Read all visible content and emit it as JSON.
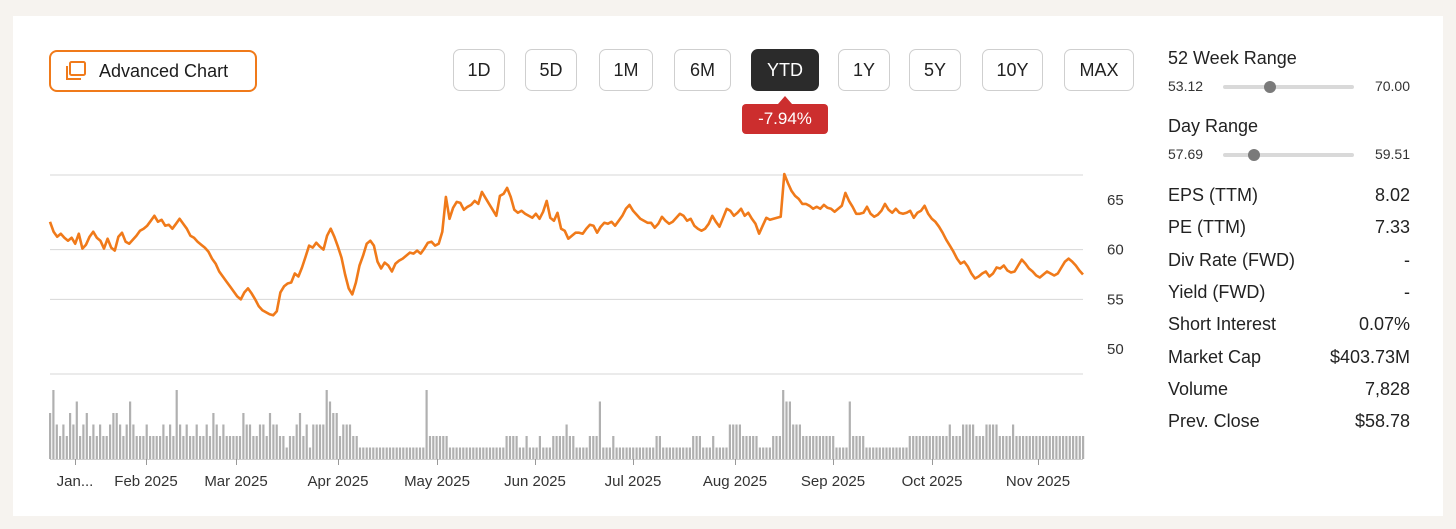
{
  "advanced_chart": {
    "label": "Advanced Chart",
    "icon": "chart-window-icon"
  },
  "time_ranges": [
    "1D",
    "5D",
    "1M",
    "6M",
    "YTD",
    "1Y",
    "5Y",
    "10Y",
    "MAX"
  ],
  "selected_range": "YTD",
  "change_badge": "-7.94%",
  "colors": {
    "accent": "#f07a1a",
    "negative": "#cc2e2e",
    "volume": "#b0b0b0",
    "active_button": "#2b2b2b"
  },
  "chart_data": {
    "type": "line",
    "y_ticks": [
      "65",
      "60",
      "55",
      "50"
    ],
    "ylim": [
      47.5,
      67.5
    ],
    "x_tick_labels": [
      "Jan...",
      "Feb 2025",
      "Mar 2025",
      "Apr 2025",
      "May 2025",
      "Jun 2025",
      "Jul 2025",
      "Aug 2025",
      "Sep 2025",
      "Oct 2025",
      "Nov 2025"
    ],
    "series": [
      {
        "values": [
          62.8,
          61.8,
          61.3,
          61.6,
          61.2,
          60.9,
          61.2,
          60.6,
          61.6,
          60.1,
          60.5,
          61.3,
          61.8,
          61.2,
          60.9,
          60.1,
          61.1,
          60.2,
          59.9,
          61.3,
          61.7,
          60.8,
          60.6,
          61.0,
          61.4,
          61.9,
          62.1,
          62.4,
          62.9,
          63.4,
          62.8,
          63.0,
          62.4,
          62.5,
          62.1,
          62.6,
          63.1,
          62.6,
          62.1,
          61.4,
          61.2,
          60.8,
          60.5,
          60.2,
          59.8,
          59.1,
          58.6,
          57.8,
          57.3,
          56.8,
          56.3,
          55.8,
          55.3,
          55.0,
          55.7,
          56.1,
          55.6,
          55.0,
          54.3,
          53.9,
          53.7,
          53.5,
          53.4,
          53.8,
          55.7,
          56.3,
          56.6,
          56.7,
          57.6,
          57.3,
          58.2,
          59.3,
          60.4,
          60.2,
          60.7,
          60.3,
          60.0,
          61.4,
          62.1,
          61.3,
          60.3,
          59.2,
          57.5,
          56.1,
          55.5,
          56.7,
          58.4,
          59.4,
          60.6,
          60.9,
          60.4,
          58.8,
          58.1,
          58.7,
          58.4,
          57.8,
          58.6,
          58.9,
          59.1,
          59.4,
          59.7,
          59.6,
          59.9,
          59.6,
          60.1,
          60.7,
          60.8,
          60.4,
          60.6,
          61.8,
          65.3,
          63.1,
          64.2,
          64.8,
          64.7,
          64.0,
          64.3,
          64.5,
          64.9,
          64.6,
          65.8,
          65.2,
          64.6,
          64.0,
          63.4,
          65.4,
          65.6,
          66.2,
          65.3,
          64.0,
          63.7,
          63.9,
          63.6,
          63.4,
          63.2,
          63.6,
          63.1,
          63.8,
          64.9,
          63.2,
          62.9,
          63.7,
          62.1,
          61.9,
          61.1,
          61.4,
          61.7,
          61.7,
          61.6,
          62.1,
          62.5,
          62.4,
          61.7,
          62.3,
          62.7,
          62.6,
          62.8,
          62.4,
          62.9,
          63.4,
          64.1,
          64.5,
          63.9,
          63.5,
          63.1,
          62.9,
          62.7,
          62.7,
          62.2,
          62.6,
          63.3,
          62.9,
          62.6,
          62.8,
          63.2,
          63.6,
          63.4,
          62.9,
          63.1,
          62.4,
          62.1,
          61.9,
          62.1,
          62.6,
          63.4,
          62.8,
          62.3,
          63.2,
          64.1,
          63.9,
          63.4,
          63.7,
          64.1,
          63.4,
          63.7,
          63.1,
          62.6,
          61.6,
          62.4,
          63.2,
          63.0,
          63.1,
          63.2,
          63.3,
          67.6,
          66.7,
          65.9,
          65.4,
          65.1,
          64.6,
          64.6,
          64.4,
          64.1,
          64.3,
          64.1,
          64.5,
          64.2,
          64.1,
          63.8,
          64.1,
          64.4,
          65.7,
          64.9,
          64.3,
          63.6,
          63.6,
          63.7,
          64.3,
          63.6,
          63.3,
          63.5,
          63.9,
          64.6,
          64.0,
          63.7,
          64.1,
          63.7,
          63.6,
          63.7,
          63.9,
          63.2,
          63.7,
          63.9,
          64.4,
          63.6,
          63.1,
          62.8,
          62.3,
          61.7,
          61.0,
          60.4,
          59.8,
          59.1,
          58.6,
          58.8,
          58.3,
          57.6,
          57.1,
          57.3,
          57.6,
          57.8,
          57.3,
          57.6,
          58.2,
          58.1,
          58.4,
          57.9,
          57.7,
          57.8,
          58.4,
          59.0,
          58.6,
          58.1,
          57.8,
          57.4,
          57.2,
          57.5,
          57.8,
          57.6,
          57.4,
          57.6,
          58.2,
          58.8,
          59.1,
          58.8,
          58.4,
          57.9,
          57.5
        ]
      }
    ],
    "volume": [
      4,
      6,
      3,
      2,
      3,
      2,
      4,
      3,
      5,
      2,
      3,
      4,
      2,
      3,
      2,
      3,
      2,
      2,
      3,
      4,
      4,
      3,
      2,
      3,
      5,
      3,
      2,
      2,
      2,
      3,
      2,
      2,
      2,
      2,
      3,
      2,
      3,
      2,
      6,
      3,
      2,
      3,
      2,
      2,
      3,
      2,
      2,
      3,
      2,
      4,
      3,
      2,
      3,
      2,
      2,
      2,
      2,
      2,
      4,
      3,
      3,
      2,
      2,
      3,
      3,
      2,
      4,
      3,
      3,
      2,
      2,
      1,
      2,
      2,
      3,
      4,
      2,
      3,
      1,
      3,
      3,
      3,
      3,
      6,
      5,
      4,
      4,
      2,
      3,
      3,
      3,
      2,
      2,
      1,
      1,
      1,
      1,
      1,
      1,
      1,
      1,
      1,
      1,
      1,
      1,
      1,
      1,
      1,
      1,
      1,
      1,
      1,
      1,
      6,
      2,
      2,
      2,
      2,
      2,
      2,
      1,
      1,
      1,
      1,
      1,
      1,
      1,
      1,
      1,
      1,
      1,
      1,
      1,
      1,
      1,
      1,
      1,
      2,
      2,
      2,
      2,
      1,
      1,
      2,
      1,
      1,
      1,
      2,
      1,
      1,
      1,
      2,
      2,
      2,
      2,
      3,
      2,
      2,
      1,
      1,
      1,
      1,
      2,
      2,
      2,
      5,
      1,
      1,
      1,
      2,
      1,
      1,
      1,
      1,
      1,
      1,
      1,
      1,
      1,
      1,
      1,
      1,
      2,
      2,
      1,
      1,
      1,
      1,
      1,
      1,
      1,
      1,
      1,
      2,
      2,
      2,
      1,
      1,
      1,
      2,
      1,
      1,
      1,
      1,
      3,
      3,
      3,
      3,
      2,
      2,
      2,
      2,
      2,
      1,
      1,
      1,
      1,
      2,
      2,
      2,
      6,
      5,
      5,
      3,
      3,
      3,
      2,
      2,
      2,
      2,
      2,
      2,
      2,
      2,
      2,
      2,
      1,
      1,
      1,
      1,
      5,
      2,
      2,
      2,
      2,
      1,
      1,
      1,
      1,
      1,
      1,
      1,
      1,
      1,
      1,
      1,
      1,
      1,
      2,
      2,
      2,
      2,
      2,
      2,
      2,
      2,
      2,
      2,
      2,
      2,
      3,
      2,
      2,
      2,
      3,
      3,
      3,
      3,
      2,
      2,
      2,
      3,
      3,
      3,
      3,
      2,
      2,
      2,
      2,
      3,
      2,
      2,
      2,
      2,
      2,
      2,
      2,
      2,
      2,
      2,
      2,
      2,
      2,
      2,
      2,
      2,
      2,
      2,
      2,
      2,
      2
    ]
  },
  "stats": {
    "week52": {
      "label": "52 Week Range",
      "low": "53.12",
      "high": "70.00",
      "position": 0.36
    },
    "day": {
      "label": "Day Range",
      "low": "57.69",
      "high": "59.51",
      "position": 0.24
    },
    "rows": [
      {
        "label": "EPS (TTM)",
        "value": "8.02"
      },
      {
        "label": "PE (TTM)",
        "value": "7.33"
      },
      {
        "label": "Div Rate (FWD)",
        "value": "-"
      },
      {
        "label": "Yield (FWD)",
        "value": "-"
      },
      {
        "label": "Short Interest",
        "value": "0.07%"
      },
      {
        "label": "Market Cap",
        "value": "$403.73M"
      },
      {
        "label": "Volume",
        "value": "7,828"
      },
      {
        "label": "Prev. Close",
        "value": "$58.78"
      }
    ]
  }
}
